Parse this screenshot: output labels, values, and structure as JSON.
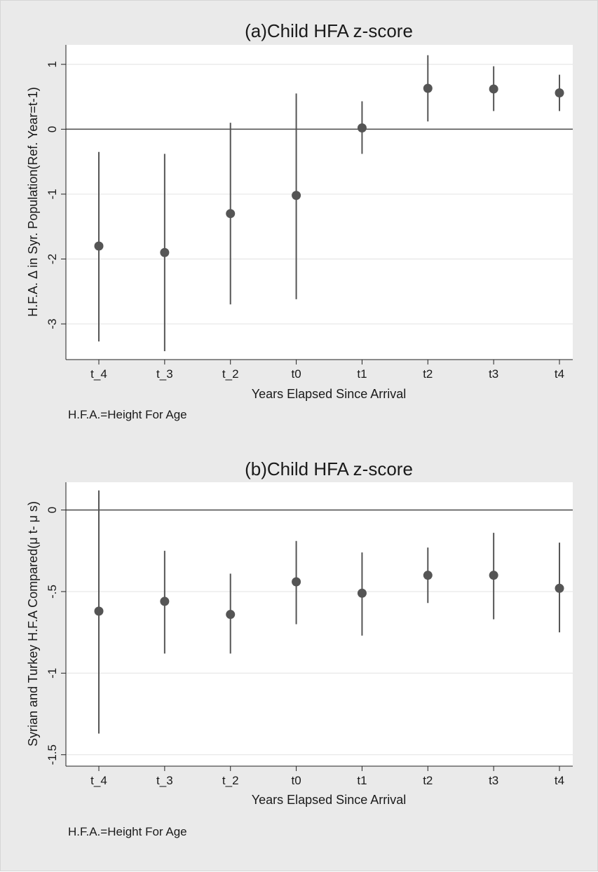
{
  "chart_data": [
    {
      "type": "scatter",
      "title": "(a)Child HFA z-score",
      "xlabel": "Years Elapsed Since Arrival",
      "ylabel": "H.F.A. Δ in Syr. Population(Ref. Year=t-1)",
      "note": "H.F.A.=Height For Age",
      "categories": [
        "t_4",
        "t_3",
        "t_2",
        "t0",
        "t1",
        "t2",
        "t3",
        "t4"
      ],
      "values": [
        -1.8,
        -1.9,
        -1.3,
        -1.02,
        0.02,
        0.63,
        0.62,
        0.56
      ],
      "ci_low": [
        -3.27,
        -3.42,
        -2.7,
        -2.62,
        -0.38,
        0.12,
        0.28,
        0.28
      ],
      "ci_high": [
        -0.35,
        -0.38,
        0.1,
        0.55,
        0.43,
        1.14,
        0.97,
        0.84
      ],
      "yticks": [
        1,
        0,
        -1,
        -2,
        -3
      ],
      "ytick_labels": [
        "1",
        "0",
        "-1",
        "-2",
        "-3"
      ],
      "ylim": [
        -3.55,
        1.3
      ],
      "reference_line": 0,
      "grid": true,
      "colors": {
        "marker": "#555555",
        "ci": "#555555",
        "grid": "#e6e6e6",
        "background": "#eaeaea",
        "plot": "#ffffff"
      }
    },
    {
      "type": "scatter",
      "title": "(b)Child HFA z-score",
      "xlabel": "Years Elapsed Since Arrival",
      "ylabel": "Syrian and Turkey H.F.A Compared(μ t- μ s)",
      "note": "H.F.A.=Height For Age",
      "categories": [
        "t_4",
        "t_3",
        "t_2",
        "t0",
        "t1",
        "t2",
        "t3",
        "t4"
      ],
      "values": [
        -0.62,
        -0.56,
        -0.64,
        -0.44,
        -0.51,
        -0.4,
        -0.4,
        -0.48
      ],
      "ci_low": [
        -1.37,
        -0.88,
        -0.88,
        -0.7,
        -0.77,
        -0.57,
        -0.67,
        -0.75
      ],
      "ci_high": [
        0.12,
        -0.25,
        -0.39,
        -0.19,
        -0.26,
        -0.23,
        -0.14,
        -0.2
      ],
      "yticks": [
        0,
        -0.5,
        -1,
        -1.5
      ],
      "ytick_labels": [
        "0",
        "-.5",
        "-1",
        "-1.5"
      ],
      "ylim": [
        -1.57,
        0.17
      ],
      "reference_line": 0,
      "grid": true,
      "colors": {
        "marker": "#555555",
        "ci": "#555555",
        "grid": "#e6e6e6",
        "background": "#eaeaea",
        "plot": "#ffffff"
      }
    }
  ]
}
